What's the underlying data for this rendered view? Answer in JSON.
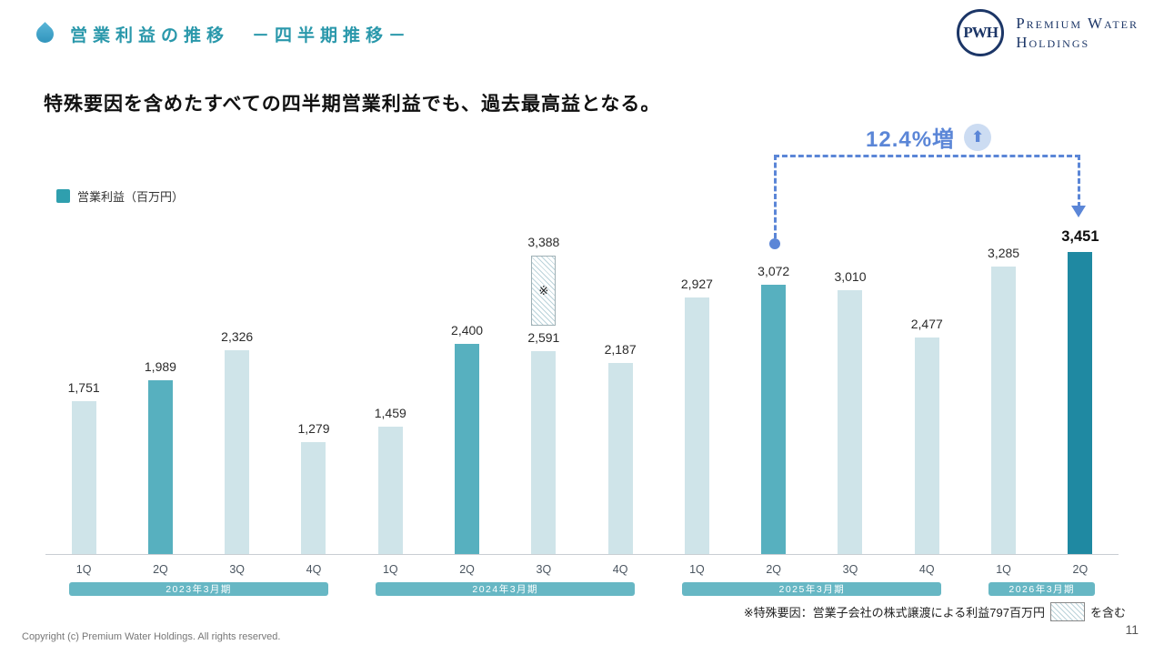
{
  "header": {
    "title": "営業利益の推移　－四半期推移－",
    "logo_monogram": "PWH",
    "logo_line1": "Premium Water",
    "logo_line2": "Holdings"
  },
  "headline": "特殊要因を含めたすべての四半期営業利益でも、過去最高益となる。",
  "legend": {
    "label": "営業利益（百万円）"
  },
  "annotation": {
    "text": "12.4%増",
    "arrow_glyph": "⬆"
  },
  "footnote": {
    "prefix": "※特殊要因：営業子会社の株式譲渡による利益797百万円",
    "suffix": "を含む"
  },
  "footer": {
    "copyright": "Copyright (c) Premium Water Holdings. All rights reserved.",
    "page_number": "11"
  },
  "colors": {
    "title_teal": "#2a98ab",
    "bar_light": "#cfe4e9",
    "bar_mid": "#57b0bf",
    "bar_dark": "#1f89a2",
    "year_band": "#67b7c4",
    "annotation_blue": "#5b86d7",
    "logo_navy": "#1c3667"
  },
  "chart_data": {
    "type": "bar",
    "title": "営業利益の推移 －四半期推移－",
    "ylabel": "営業利益（百万円）",
    "unit": "百万円",
    "ylim": [
      0,
      3600
    ],
    "grid": false,
    "legend_position": "top-left",
    "groups": [
      {
        "label": "2023年3月期",
        "bars": [
          {
            "q": "1Q",
            "value": 1751,
            "style": "light"
          },
          {
            "q": "2Q",
            "value": 1989,
            "style": "mid"
          },
          {
            "q": "3Q",
            "value": 2326,
            "style": "light"
          },
          {
            "q": "4Q",
            "value": 1279,
            "style": "light"
          }
        ]
      },
      {
        "label": "2024年3月期",
        "bars": [
          {
            "q": "1Q",
            "value": 1459,
            "style": "light"
          },
          {
            "q": "2Q",
            "value": 2400,
            "style": "mid"
          },
          {
            "q": "3Q",
            "value": 2591,
            "style": "light",
            "hatch_to": 3388,
            "hatch_mark": "※"
          },
          {
            "q": "4Q",
            "value": 2187,
            "style": "light"
          }
        ]
      },
      {
        "label": "2025年3月期",
        "bars": [
          {
            "q": "1Q",
            "value": 2927,
            "style": "light"
          },
          {
            "q": "2Q",
            "value": 3072,
            "style": "mid"
          },
          {
            "q": "3Q",
            "value": 3010,
            "style": "light"
          },
          {
            "q": "4Q",
            "value": 2477,
            "style": "light"
          }
        ]
      },
      {
        "label": "2026年3月期",
        "bars": [
          {
            "q": "1Q",
            "value": 3285,
            "style": "light"
          },
          {
            "q": "2Q",
            "value": 3451,
            "style": "dark",
            "bold": true
          }
        ]
      }
    ],
    "annotation": {
      "text": "12.4%増",
      "from": "2025年3月期 2Q",
      "to": "2026年3月期 2Q"
    }
  }
}
